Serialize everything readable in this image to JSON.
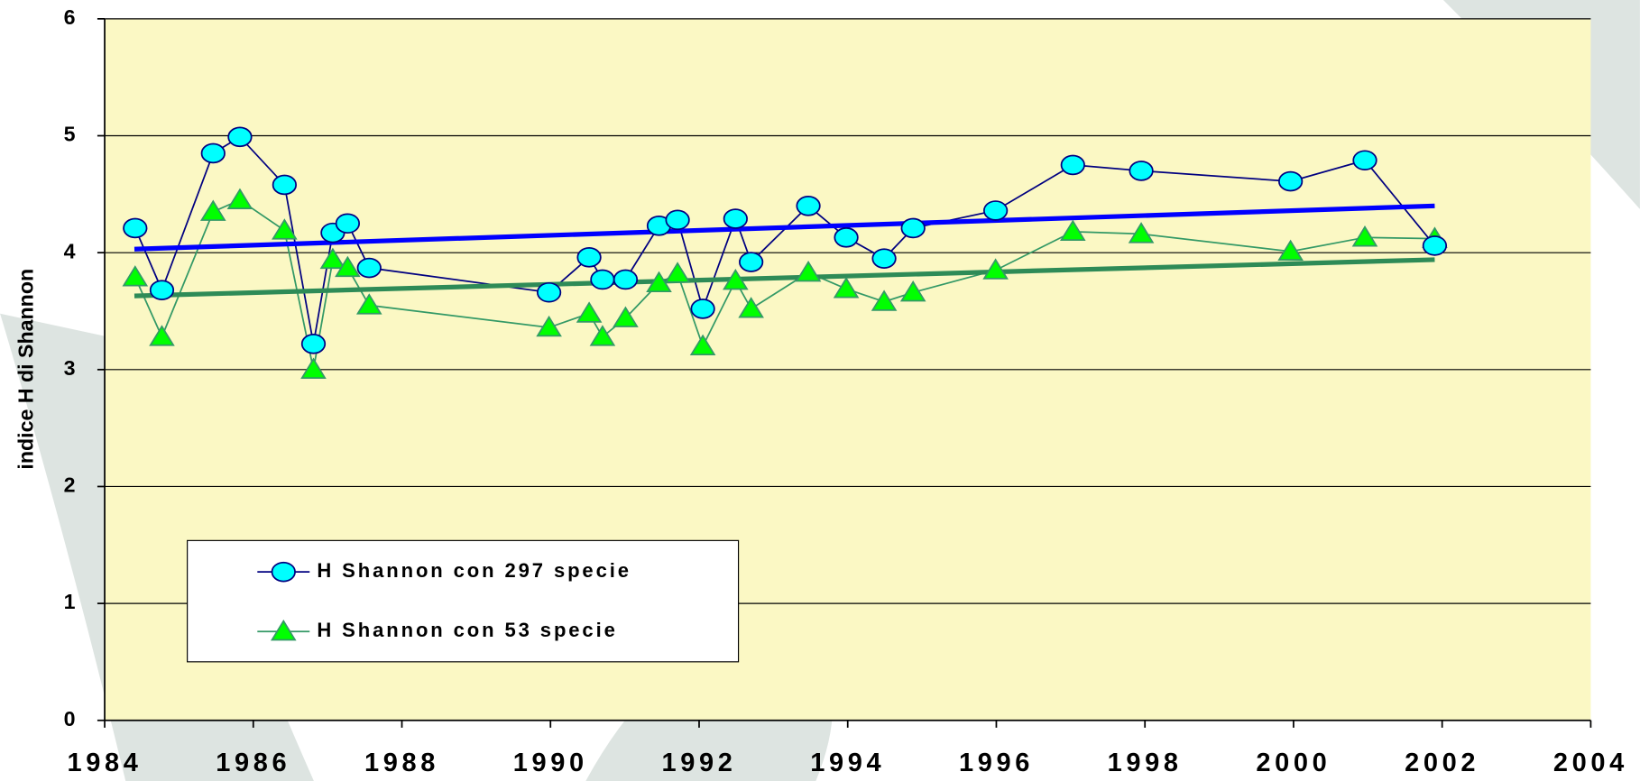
{
  "chart_data": {
    "type": "line",
    "ylabel": "indice H di Shannon",
    "xlim": [
      1984,
      2004
    ],
    "xticks": [
      1984,
      1986,
      1988,
      1990,
      1992,
      1994,
      1996,
      1998,
      2000,
      2002,
      2004
    ],
    "ylim": [
      0,
      6
    ],
    "yticks": [
      0,
      1,
      2,
      3,
      4,
      5,
      6
    ],
    "grid": true,
    "legend": "lower-left",
    "x": [
      1984.41,
      1984.77,
      1985.46,
      1985.82,
      1986.42,
      1986.81,
      1987.07,
      1987.27,
      1987.56,
      1989.98,
      1990.52,
      1990.7,
      1991.01,
      1991.46,
      1991.71,
      1992.05,
      1992.49,
      1992.7,
      1993.47,
      1993.98,
      1994.49,
      1994.88,
      1995.99,
      1997.03,
      1997.95,
      1999.96,
      2000.96,
      2001.9
    ],
    "series": [
      {
        "name": "H Shannon con 297 specie",
        "color": "#000080",
        "marker_color": "#00ffff",
        "marker": "circle",
        "values": [
          4.21,
          3.68,
          4.85,
          4.99,
          4.58,
          3.22,
          4.17,
          4.25,
          3.87,
          3.66,
          3.96,
          3.77,
          3.77,
          4.23,
          4.28,
          3.52,
          4.29,
          3.92,
          4.4,
          4.13,
          3.95,
          4.21,
          4.36,
          4.75,
          4.7,
          4.61,
          4.79,
          4.06
        ]
      },
      {
        "name": "H Shannon con 53 specie",
        "color": "#339966",
        "marker_color": "#00ff00",
        "marker": "triangle",
        "values": [
          3.79,
          3.28,
          4.35,
          4.45,
          4.19,
          3.0,
          3.94,
          3.87,
          3.55,
          3.36,
          3.48,
          3.28,
          3.44,
          3.74,
          3.82,
          3.2,
          3.76,
          3.52,
          3.83,
          3.69,
          3.58,
          3.66,
          3.85,
          4.18,
          4.16,
          4.01,
          4.13,
          4.12
        ]
      }
    ],
    "trendlines": [
      {
        "color": "#0000ff",
        "x": [
          1984.4,
          2001.9
        ],
        "values": [
          4.03,
          4.4
        ]
      },
      {
        "color": "#2e8b57",
        "x": [
          1984.4,
          2001.9
        ],
        "values": [
          3.63,
          3.94
        ]
      }
    ]
  }
}
